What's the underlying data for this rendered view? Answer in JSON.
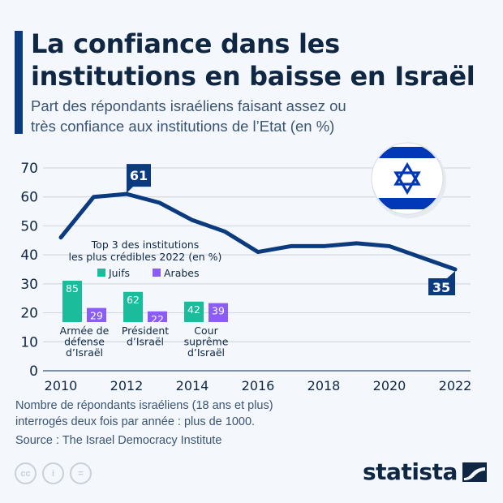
{
  "header": {
    "title": "La confiance dans les institutions en baisse en Israël",
    "title_lines": [
      "La confiance dans les",
      "institutions en baisse en Israël"
    ],
    "subtitle_lines": [
      "Part des répondants israéliens faisant assez ou",
      "très confiance aux institutions de l’Etat (en %)"
    ]
  },
  "colors": {
    "line": "#0b3a7e",
    "juifs": "#1abc9c",
    "arabes": "#8b5cf6",
    "accent_bar": "#0b3a7e",
    "flag_blue": "#0038b8"
  },
  "chart_data": [
    {
      "type": "line",
      "title": "La confiance dans les institutions en baisse en Israël",
      "subtitle": "Part des répondants israéliens faisant assez ou très confiance aux institutions de l’Etat (en %)",
      "x": [
        2010,
        2011,
        2012,
        2013,
        2014,
        2015,
        2016,
        2017,
        2018,
        2019,
        2020,
        2021,
        2022
      ],
      "series": [
        {
          "name": "Confiance dans les institutions",
          "values": [
            46,
            60,
            61,
            58,
            52,
            48,
            41,
            43,
            43,
            44,
            43,
            39,
            35
          ]
        }
      ],
      "xticks": [
        "2010",
        "2012",
        "2014",
        "2016",
        "2018",
        "2020",
        "2022"
      ],
      "yticks": [
        "0",
        "10",
        "20",
        "30",
        "40",
        "50",
        "60",
        "70"
      ],
      "ylim": [
        0,
        70
      ],
      "xlim": [
        2010,
        2022
      ],
      "xlabel": "",
      "ylabel": "",
      "grid": true,
      "annotations": [
        {
          "x": 2012,
          "value": 61,
          "label": "61"
        },
        {
          "x": 2022,
          "value": 35,
          "label": "35"
        }
      ]
    },
    {
      "type": "bar",
      "title": "Top 3 des institutions les plus crédibles 2022 (en %)",
      "title_lines": [
        "Top 3 des institutions",
        "les plus crédibles 2022 (en %)"
      ],
      "categories": [
        "Armée de défense d’Israël",
        "Président d’Israël",
        "Cour suprême d’Israël"
      ],
      "category_lines": [
        [
          "Armée de",
          "défense",
          "d’Israël"
        ],
        [
          "Président",
          "d’Israël"
        ],
        [
          "Cour",
          "suprême",
          "d’Israël"
        ]
      ],
      "series": [
        {
          "name": "Juifs",
          "values": [
            85,
            62,
            42
          ]
        },
        {
          "name": "Arabes",
          "values": [
            29,
            22,
            39
          ]
        }
      ],
      "legend": "top",
      "ylim": [
        0,
        100
      ]
    }
  ],
  "footer": {
    "note_lines": [
      "Nombre de répondants israéliens (18 ans et plus)",
      "interrogés deux fois par année : plus de 1000."
    ],
    "source": "Source : The Israel Democracy Institute",
    "license_icons": [
      "cc-icon",
      "attribution-icon",
      "no-derivatives-icon"
    ],
    "license_glyphs": [
      "cc",
      "i",
      "="
    ],
    "logo": "statista"
  }
}
